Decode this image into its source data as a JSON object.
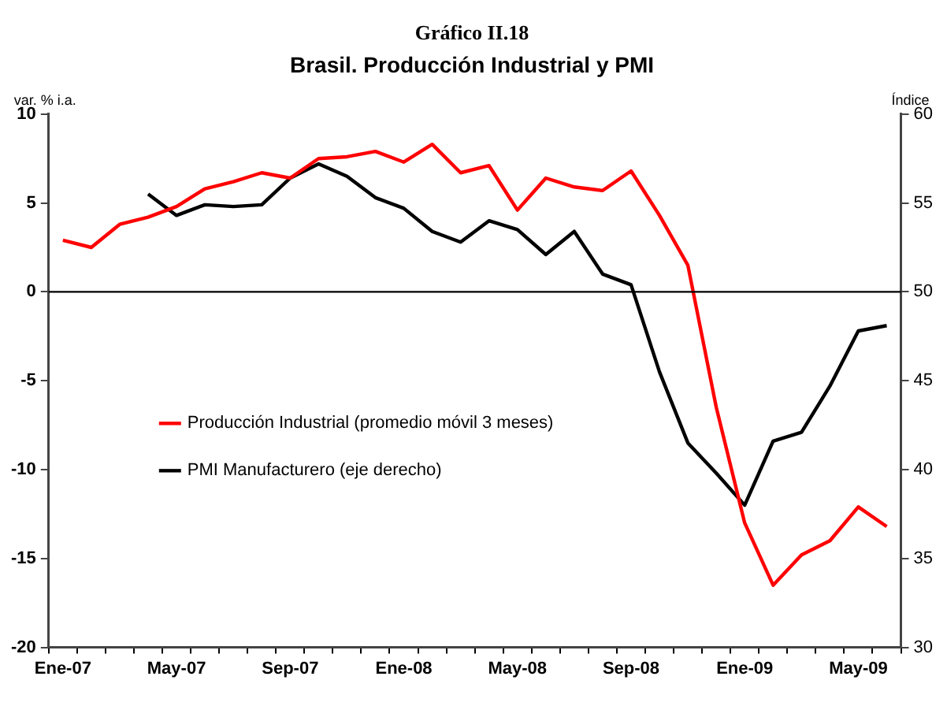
{
  "chart_data": {
    "type": "line",
    "title": "Gráfico II.18",
    "subtitle": "Brasil. Producción Industrial y PMI",
    "ylabel": "var. % i.a.",
    "y2label": "Índice",
    "categories": [
      "Ene-07",
      null,
      null,
      null,
      "May-07",
      null,
      null,
      null,
      "Sep-07",
      null,
      null,
      null,
      "Ene-08",
      null,
      null,
      null,
      "May-08",
      null,
      null,
      null,
      "Sep-08",
      null,
      null,
      null,
      "Ene-09",
      null,
      null,
      null,
      "May-09",
      null
    ],
    "series": [
      {
        "name": "Producción Industrial (promedio móvil 3 meses)",
        "color": "#ff0000",
        "values": [
          2.9,
          2.5,
          3.8,
          4.2,
          4.8,
          5.8,
          6.2,
          6.7,
          6.4,
          7.5,
          7.6,
          7.9,
          7.3,
          8.3,
          6.7,
          7.1,
          4.6,
          6.4,
          5.9,
          5.7,
          6.8,
          4.3,
          1.5,
          -6.5,
          -13.0,
          -16.5,
          -14.8,
          -14.0,
          -12.1,
          -13.2
        ]
      },
      {
        "name": "PMI Manufacturero (eje derecho)",
        "color": "#000000",
        "axis": "y2",
        "values": [
          null,
          null,
          null,
          55.5,
          54.3,
          54.9,
          54.8,
          54.9,
          56.4,
          57.2,
          56.5,
          55.3,
          54.7,
          53.4,
          52.8,
          54.0,
          53.5,
          52.1,
          53.4,
          51.0,
          50.4,
          45.5,
          41.5,
          39.8,
          38.0,
          41.6,
          42.1,
          44.7,
          47.8,
          48.1
        ]
      }
    ],
    "ylim": [
      -20,
      10
    ],
    "yticks": [
      -20,
      -15,
      -10,
      -5,
      0,
      5,
      10
    ],
    "y2lim": [
      30,
      60
    ],
    "y2ticks": [
      30,
      35,
      40,
      45,
      50,
      55,
      60
    ],
    "ref_lines": [
      {
        "axis": "y",
        "value": 0,
        "color": "#000000"
      }
    ],
    "legend": "left",
    "grid": false,
    "marker": "none",
    "line_style": "solid"
  }
}
